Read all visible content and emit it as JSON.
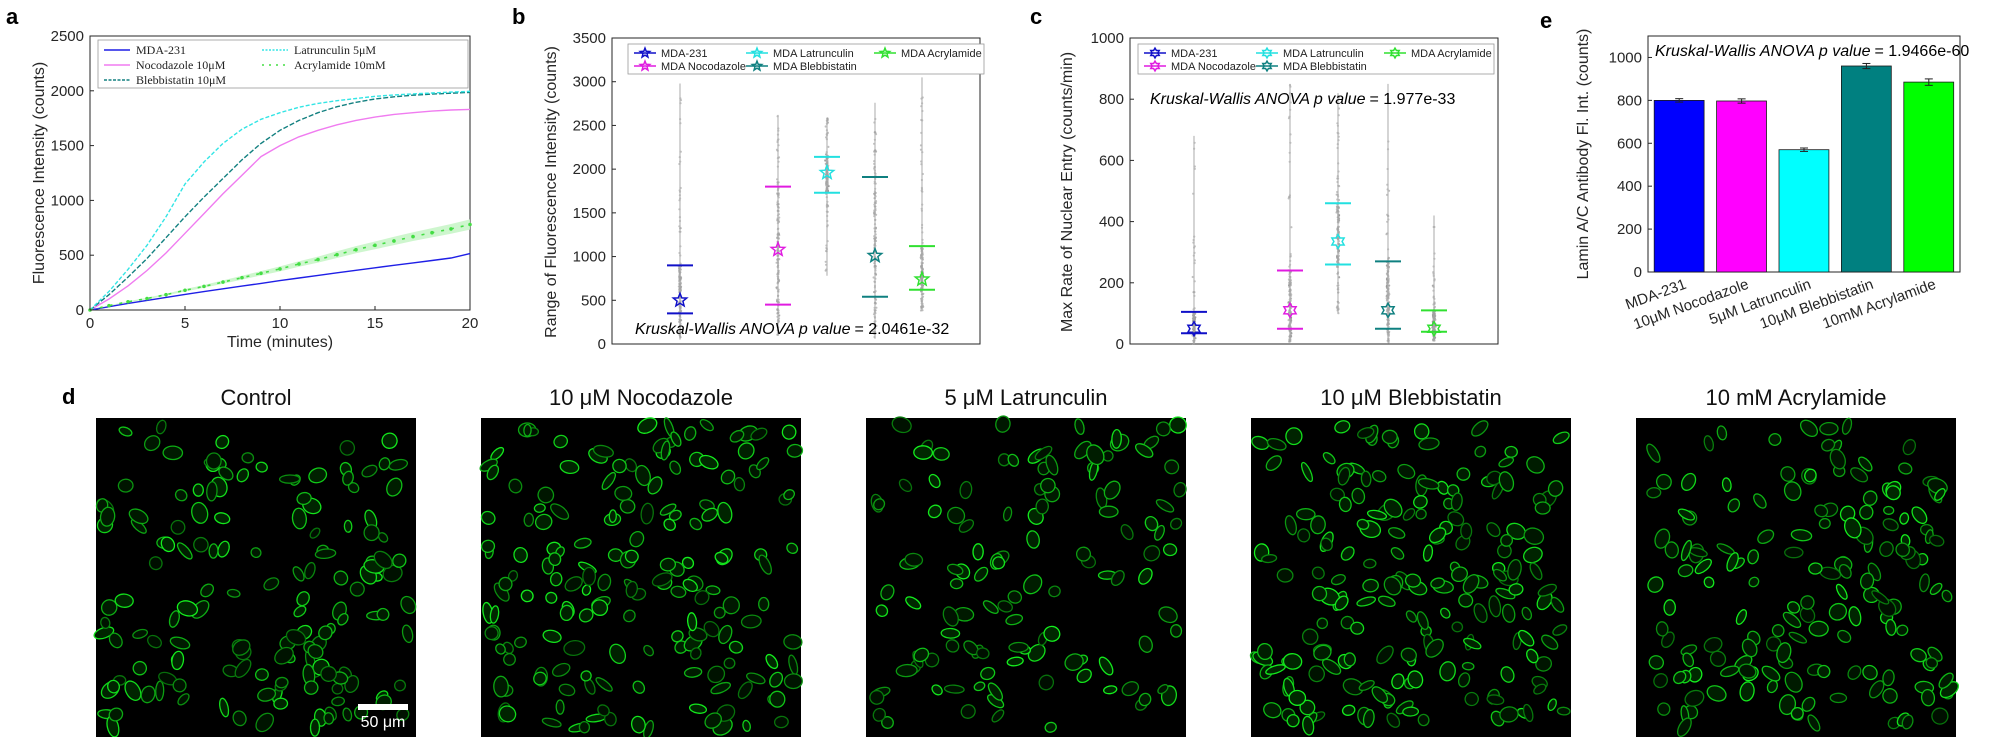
{
  "panels": [
    "a",
    "b",
    "c",
    "d",
    "e"
  ],
  "colors": {
    "mda": "#1f1fe6",
    "noc": "#f07cf0",
    "lat": "#33e5e5",
    "ble": "#138080",
    "acr": "#44dd44",
    "b_mda": "#1010c8",
    "b_noc": "#e01be0",
    "b_lat": "#22e0e0",
    "b_ble": "#0f8080",
    "b_acr": "#30e030"
  },
  "chart_data": [
    {
      "type": "line",
      "panel": "a",
      "xlabel": "Time (minutes)",
      "ylabel": "Fluorescence Intensity (counts)",
      "xlim": [
        0,
        20
      ],
      "ylim": [
        0,
        2500
      ],
      "xticks": [
        0,
        5,
        10,
        15,
        20
      ],
      "yticks": [
        0,
        500,
        1000,
        1500,
        2000,
        2500
      ],
      "legend_position": "top-left",
      "x": [
        0,
        1,
        2,
        3,
        4,
        5,
        6,
        7,
        8,
        9,
        10,
        11,
        12,
        13,
        14,
        15,
        16,
        17,
        18,
        19,
        20
      ],
      "series": [
        {
          "name": "MDA-231",
          "color": "#1f1fe6",
          "values": [
            0,
            30,
            60,
            88,
            115,
            142,
            168,
            193,
            218,
            243,
            268,
            292,
            316,
            339,
            362,
            385,
            408,
            430,
            452,
            474,
            515
          ]
        },
        {
          "name": "Nocodazole 10μM",
          "color": "#f07cf0",
          "values": [
            0,
            100,
            220,
            360,
            520,
            700,
            880,
            1060,
            1230,
            1400,
            1500,
            1580,
            1640,
            1690,
            1730,
            1760,
            1785,
            1800,
            1815,
            1825,
            1830
          ]
        },
        {
          "name": "Blebbistatin 10μM",
          "color": "#138080",
          "values": [
            0,
            140,
            300,
            470,
            660,
            850,
            1030,
            1200,
            1370,
            1520,
            1640,
            1730,
            1800,
            1855,
            1895,
            1925,
            1945,
            1960,
            1970,
            1978,
            1985
          ]
        },
        {
          "name": "Latrunculin 5μM",
          "color": "#33e5e5",
          "values": [
            0,
            170,
            370,
            590,
            850,
            1150,
            1350,
            1520,
            1650,
            1740,
            1800,
            1850,
            1885,
            1910,
            1930,
            1950,
            1962,
            1972,
            1980,
            1988,
            1995
          ]
        },
        {
          "name": "Acrylamide 10mM",
          "color": "#44dd44",
          "values": [
            0,
            40,
            75,
            105,
            140,
            180,
            215,
            255,
            295,
            335,
            375,
            420,
            460,
            505,
            550,
            590,
            630,
            670,
            705,
            740,
            780
          ]
        }
      ]
    },
    {
      "type": "scatter",
      "panel": "b",
      "ylabel": "Range of Fluorescence Intensity (counts)",
      "ylim": [
        0,
        3500
      ],
      "yticks": [
        0,
        500,
        1000,
        1500,
        2000,
        2500,
        3000,
        3500
      ],
      "legend_position": "top",
      "annotation_italic": "Kruskal-Wallis ANOVA p value",
      "annotation_value": "= 2.0461e-32",
      "series": [
        {
          "name": "MDA-231",
          "color": "#1010c8",
          "median": 500,
          "q1": 350,
          "q3": 900,
          "min": 50,
          "max": 2980
        },
        {
          "name": "MDA Nocodazole",
          "color": "#e01be0",
          "median": 1080,
          "q1": 450,
          "q3": 1800,
          "min": 100,
          "max": 2620
        },
        {
          "name": "MDA Latrunculin",
          "color": "#22e0e0",
          "median": 1960,
          "q1": 1730,
          "q3": 2140,
          "min": 780,
          "max": 2580
        },
        {
          "name": "MDA Blebbistatin",
          "color": "#0f8080",
          "median": 1010,
          "q1": 540,
          "q3": 1910,
          "min": 60,
          "max": 2760
        },
        {
          "name": "MDA Acrylamide",
          "color": "#30e030",
          "median": 740,
          "q1": 620,
          "q3": 1120,
          "min": 380,
          "max": 3050
        }
      ]
    },
    {
      "type": "scatter",
      "panel": "c",
      "ylabel": "Max Rate of Nuclear Entry (counts/min)",
      "ylim": [
        0,
        1000
      ],
      "yticks": [
        0,
        200,
        400,
        600,
        800,
        1000
      ],
      "legend_position": "top",
      "annotation_italic": "Kruskal-Wallis ANOVA p value",
      "annotation_value": "= 1.977e-33",
      "series": [
        {
          "name": "MDA-231",
          "color": "#1010c8",
          "median": 50,
          "q1": 35,
          "q3": 105,
          "min": 0,
          "max": 680
        },
        {
          "name": "MDA Nocodazole",
          "color": "#e01be0",
          "median": 110,
          "q1": 50,
          "q3": 240,
          "min": 5,
          "max": 850
        },
        {
          "name": "MDA Latrunculin",
          "color": "#22e0e0",
          "median": 335,
          "q1": 260,
          "q3": 460,
          "min": 100,
          "max": 820
        },
        {
          "name": "MDA Blebbistatin",
          "color": "#0f8080",
          "median": 110,
          "q1": 50,
          "q3": 270,
          "min": 5,
          "max": 850
        },
        {
          "name": "MDA Acrylamide",
          "color": "#30e030",
          "median": 50,
          "q1": 40,
          "q3": 110,
          "min": 10,
          "max": 420
        }
      ]
    },
    {
      "type": "bar",
      "panel": "e",
      "ylabel": "Lamin A/C Antibody Fl. Int. (counts)",
      "ylim": [
        0,
        1100
      ],
      "yticks": [
        0,
        200,
        400,
        600,
        800,
        1000
      ],
      "categories": [
        "MDA-231",
        "10μM Nocodazole",
        "5μM Latrunculin",
        "10μM Blebbistatin",
        "10mM Acrylamide"
      ],
      "values": [
        800,
        797,
        570,
        960,
        885
      ],
      "errors": [
        8,
        10,
        8,
        12,
        15
      ],
      "colors": [
        "#0000ff",
        "#ff00ff",
        "#00ffff",
        "#008080",
        "#00ff00"
      ],
      "annotation_italic": "Kruskal-Wallis ANOVA p value",
      "annotation_value": "= 1.9466e-60"
    }
  ],
  "image_panel": {
    "titles": [
      "Control",
      "10 μM Nocodazole",
      "5 μM Latrunculin",
      "10 μM Blebbistatin",
      "10 mM Acrylamide"
    ],
    "scale_bar_label": "50 μm",
    "densities": [
      150,
      170,
      120,
      190,
      160
    ]
  }
}
